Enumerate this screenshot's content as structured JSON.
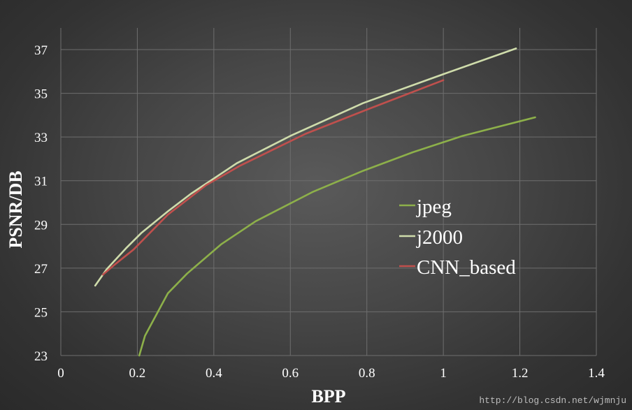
{
  "chart_data": {
    "type": "line",
    "xlabel": "BPP",
    "ylabel": "PSNR/DB",
    "xlim": [
      0,
      1.4
    ],
    "ylim": [
      23,
      38
    ],
    "x_ticks": [
      0,
      0.2,
      0.4,
      0.6,
      0.8,
      1,
      1.2,
      1.4
    ],
    "x_tick_labels": [
      "0",
      "0.2",
      "0.4",
      "0.6",
      "0.8",
      "1",
      "1.2",
      "1.4"
    ],
    "y_ticks": [
      23,
      25,
      27,
      29,
      31,
      33,
      35,
      37
    ],
    "y_tick_labels": [
      "23",
      "25",
      "27",
      "29",
      "31",
      "33",
      "35",
      "37"
    ],
    "grid": true,
    "legend_position": "right-center",
    "series": [
      {
        "name": "jpeg",
        "color": "#8db04a",
        "points": [
          [
            0.205,
            23.0
          ],
          [
            0.22,
            23.9
          ],
          [
            0.28,
            25.85
          ],
          [
            0.33,
            26.75
          ],
          [
            0.42,
            28.1
          ],
          [
            0.51,
            29.15
          ],
          [
            0.66,
            30.5
          ],
          [
            0.79,
            31.45
          ],
          [
            0.92,
            32.3
          ],
          [
            1.05,
            33.05
          ],
          [
            1.24,
            33.9
          ]
        ]
      },
      {
        "name": "j2000",
        "color": "#cfdcab",
        "points": [
          [
            0.09,
            26.2
          ],
          [
            0.12,
            26.95
          ],
          [
            0.17,
            27.9
          ],
          [
            0.21,
            28.6
          ],
          [
            0.28,
            29.6
          ],
          [
            0.34,
            30.4
          ],
          [
            0.46,
            31.8
          ],
          [
            0.6,
            33.05
          ],
          [
            0.79,
            34.55
          ],
          [
            0.98,
            35.75
          ],
          [
            1.19,
            37.05
          ]
        ]
      },
      {
        "name": "CNN_based",
        "color": "#c0504d",
        "points": [
          [
            0.11,
            26.7
          ],
          [
            0.14,
            27.15
          ],
          [
            0.19,
            27.85
          ],
          [
            0.28,
            29.45
          ],
          [
            0.38,
            30.8
          ],
          [
            0.47,
            31.7
          ],
          [
            0.64,
            33.15
          ],
          [
            0.8,
            34.25
          ],
          [
            1.0,
            35.6
          ]
        ]
      }
    ]
  },
  "watermark": "http://blog.csdn.net/wjmnju"
}
